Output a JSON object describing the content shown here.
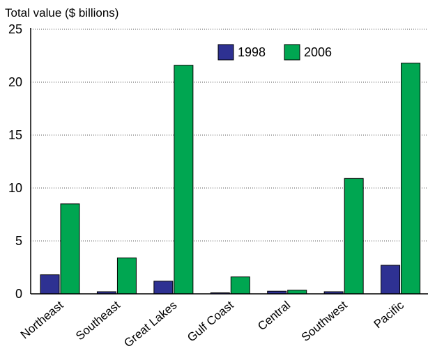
{
  "chart_data": {
    "type": "bar",
    "title": "",
    "xlabel": "",
    "ylabel": "Total value ($ billions)",
    "categories": [
      "Northeast",
      "Southeast",
      "Great Lakes",
      "Gulf Coast",
      "Central",
      "Southwest",
      "Pacific"
    ],
    "series": [
      {
        "name": "1998",
        "values": [
          1.8,
          0.2,
          1.2,
          0.1,
          0.25,
          0.2,
          2.7
        ]
      },
      {
        "name": "2006",
        "values": [
          8.5,
          3.4,
          21.6,
          1.6,
          0.35,
          10.9,
          21.8
        ]
      }
    ],
    "ylim": [
      0,
      25
    ],
    "yticks": [
      0,
      5,
      10,
      15,
      20,
      25
    ],
    "grid": true,
    "legend_position": "top-center",
    "colors": {
      "1998": "#2e3192",
      "2006": "#00a651"
    }
  }
}
